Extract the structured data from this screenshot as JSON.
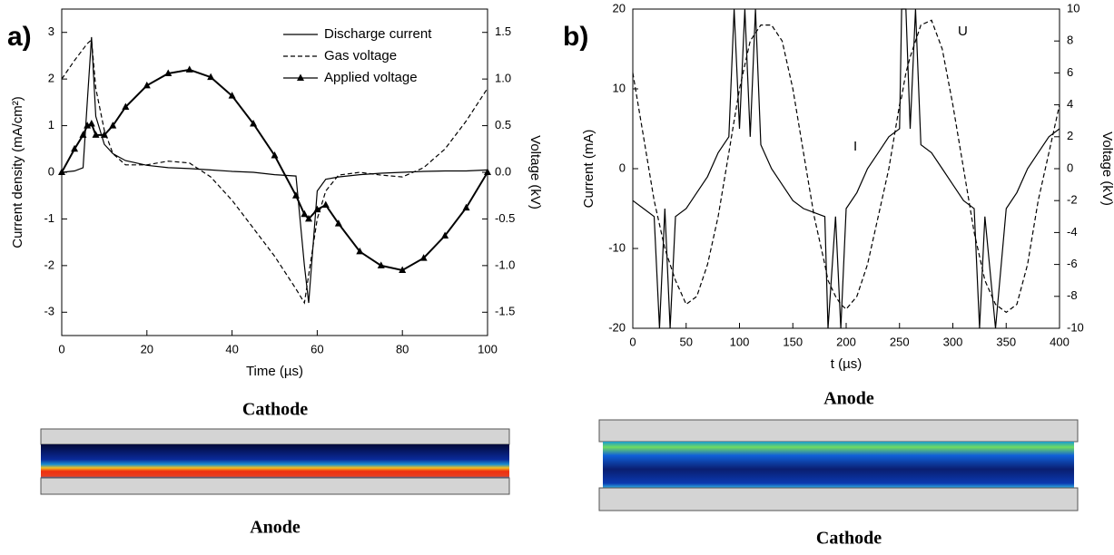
{
  "chart_data": [
    {
      "type": "line",
      "panel_label": "a)",
      "x_label": "Time (µs)",
      "y_label": "Current density (mA/cm²)",
      "y2_label": "Voltage (kV)",
      "x": [
        0,
        3,
        5,
        6,
        7,
        8,
        10,
        12,
        15,
        20,
        25,
        30,
        35,
        40,
        45,
        50,
        55,
        57,
        58,
        60,
        62,
        65,
        70,
        75,
        80,
        85,
        90,
        95,
        100
      ],
      "xlim": [
        0,
        100
      ],
      "xticks": [
        0,
        20,
        40,
        60,
        80,
        100
      ],
      "ylim": [
        -3.5,
        3.5
      ],
      "yticks": [
        -3,
        -2,
        -1,
        0,
        1,
        2,
        3
      ],
      "y2lim": [
        -1.75,
        1.75
      ],
      "y2ticks": [
        -1.5,
        {
          "value": -1,
          "label": "-1.0"
        },
        -0.5,
        {
          "value": 0,
          "label": "0.0"
        },
        0.5,
        {
          "value": 1,
          "label": "1.0"
        },
        1.5
      ],
      "legend": "upper right",
      "series": [
        {
          "name": "Discharge current",
          "color": "#000000",
          "style": "solid",
          "values": [
            0,
            0.03,
            0.1,
            1.5,
            2.9,
            1.2,
            0.6,
            0.4,
            0.25,
            0.15,
            0.1,
            0.08,
            0.05,
            0.02,
            0,
            -0.05,
            -0.08,
            -2.0,
            -2.8,
            -0.4,
            -0.15,
            -0.1,
            -0.05,
            -0.02,
            0,
            0.02,
            0.03,
            0.03,
            0.05
          ]
        },
        {
          "name": "Gas voltage",
          "color": "#000000",
          "style": "dashed",
          "axis": "y2",
          "values": [
            1.0,
            1.2,
            1.32,
            1.38,
            1.42,
            0.9,
            0.45,
            0.2,
            0.08,
            0.08,
            0.12,
            0.1,
            -0.05,
            -0.3,
            -0.6,
            -0.9,
            -1.25,
            -1.4,
            -1.1,
            -0.5,
            -0.2,
            -0.03,
            0,
            -0.03,
            -0.05,
            0.05,
            0.25,
            0.55,
            0.9
          ]
        },
        {
          "name": "Applied voltage",
          "color": "#000000",
          "style": "solid",
          "marker": "triangle",
          "axis": "y2",
          "values": [
            0,
            0.25,
            0.4,
            0.5,
            0.52,
            0.4,
            0.4,
            0.5,
            0.7,
            0.93,
            1.06,
            1.1,
            1.02,
            0.82,
            0.52,
            0.18,
            -0.25,
            -0.45,
            -0.5,
            -0.4,
            -0.35,
            -0.55,
            -0.85,
            -1.0,
            -1.05,
            -0.92,
            -0.68,
            -0.38,
            0
          ]
        }
      ],
      "electrodes": {
        "top": "Cathode",
        "bottom": "Anode"
      }
    },
    {
      "type": "line",
      "panel_label": "b)",
      "x_label": "t (µs)",
      "y_label": "Current (mA)",
      "y2_label": "Voltage (kV)",
      "x": [
        0,
        10,
        20,
        25,
        30,
        35,
        40,
        50,
        60,
        70,
        80,
        90,
        95,
        100,
        105,
        110,
        115,
        120,
        130,
        140,
        150,
        160,
        170,
        180,
        183,
        190,
        195,
        200,
        210,
        220,
        230,
        240,
        250,
        252,
        256,
        260,
        265,
        270,
        280,
        290,
        300,
        310,
        320,
        325,
        330,
        340,
        350,
        360,
        370,
        380,
        390,
        400
      ],
      "xlim": [
        0,
        400
      ],
      "xticks": [
        0,
        50,
        100,
        150,
        200,
        250,
        300,
        350,
        400
      ],
      "ylim": [
        -20,
        20
      ],
      "yticks": [
        -20,
        -10,
        0,
        10,
        20
      ],
      "y2lim": [
        -10,
        10
      ],
      "y2ticks": [
        -10,
        -8,
        -6,
        -4,
        -2,
        0,
        2,
        4,
        6,
        8,
        10
      ],
      "legend": "none",
      "series": [
        {
          "name": "I",
          "color": "#000000",
          "style": "solid",
          "values": [
            -4,
            -5,
            -6,
            -20,
            -5,
            -20,
            -6,
            -5,
            -3,
            -1,
            2,
            4,
            20,
            5,
            20,
            4,
            20,
            3,
            0,
            -2,
            -4,
            -5,
            -5.5,
            -6,
            -20,
            -6,
            -20,
            -5,
            -3,
            0,
            2,
            4,
            5,
            20,
            20,
            5,
            20,
            3,
            2,
            0,
            -2,
            -4,
            -5,
            -20,
            -6,
            -20,
            -5,
            -3,
            0,
            2,
            4,
            5
          ]
        },
        {
          "name": "U",
          "color": "#000000",
          "style": "dashed",
          "axis": "y2",
          "values": [
            6,
            2,
            -2,
            -3.5,
            -5,
            -6,
            -7,
            -8.5,
            -8,
            -6,
            -3,
            1,
            3,
            5,
            6.5,
            8,
            8.5,
            9,
            9,
            8,
            5,
            1,
            -3,
            -6,
            -7,
            -8,
            -8.5,
            -8.8,
            -8,
            -6,
            -3,
            0,
            4,
            4.5,
            6,
            7,
            8,
            9,
            9.3,
            7.5,
            4,
            0,
            -4,
            -5.5,
            -7,
            -8.5,
            -9,
            -8.5,
            -6,
            -2,
            1,
            4
          ]
        }
      ],
      "electrodes": {
        "top": "Anode",
        "bottom": "Cathode"
      }
    }
  ]
}
